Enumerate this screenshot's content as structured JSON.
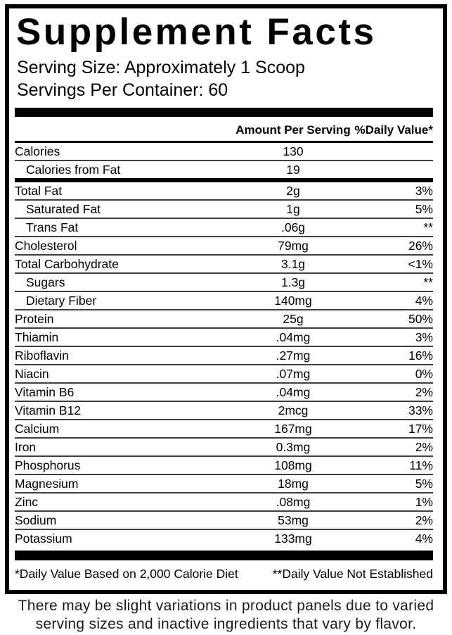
{
  "label": {
    "title": "Supplement Facts",
    "serving_size": "Serving Size: Approximately 1 Scoop",
    "servings_per_container": "Servings Per Container: 60",
    "columns": {
      "amount": "Amount Per Serving",
      "daily_value": "%Daily Value*"
    },
    "rows": [
      {
        "name": "Calories",
        "amount": "130",
        "dv": "",
        "indent": false,
        "sep": "thin"
      },
      {
        "name": "Calories from Fat",
        "amount": "19",
        "dv": "",
        "indent": true,
        "sep": "mid"
      },
      {
        "name": "Total Fat",
        "amount": "2g",
        "dv": "3%",
        "indent": false,
        "sep": "thin"
      },
      {
        "name": "Saturated Fat",
        "amount": "1g",
        "dv": "5%",
        "indent": true,
        "sep": "thin"
      },
      {
        "name": "Trans Fat",
        "amount": ".06g",
        "dv": "**",
        "indent": true,
        "sep": "thin"
      },
      {
        "name": "Cholesterol",
        "amount": "79mg",
        "dv": "26%",
        "indent": false,
        "sep": "thin"
      },
      {
        "name": "Total Carbohydrate",
        "amount": "3.1g",
        "dv": "<1%",
        "indent": false,
        "sep": "thin"
      },
      {
        "name": "Sugars",
        "amount": "1.3g",
        "dv": "**",
        "indent": true,
        "sep": "thin"
      },
      {
        "name": "Dietary Fiber",
        "amount": "140mg",
        "dv": "4%",
        "indent": true,
        "sep": "thin"
      },
      {
        "name": "Protein",
        "amount": "25g",
        "dv": "50%",
        "indent": false,
        "sep": "thin"
      },
      {
        "name": "Thiamin",
        "amount": ".04mg",
        "dv": "3%",
        "indent": false,
        "sep": "thin"
      },
      {
        "name": "Riboflavin",
        "amount": ".27mg",
        "dv": "16%",
        "indent": false,
        "sep": "thin"
      },
      {
        "name": "Niacin",
        "amount": ".07mg",
        "dv": "0%",
        "indent": false,
        "sep": "thin"
      },
      {
        "name": "Vitamin B6",
        "amount": ".04mg",
        "dv": "2%",
        "indent": false,
        "sep": "thin"
      },
      {
        "name": "Vitamin B12",
        "amount": "2mcg",
        "dv": "33%",
        "indent": false,
        "sep": "thin"
      },
      {
        "name": "Calcium",
        "amount": "167mg",
        "dv": "17%",
        "indent": false,
        "sep": "thin"
      },
      {
        "name": "Iron",
        "amount": "0.3mg",
        "dv": "2%",
        "indent": false,
        "sep": "thin"
      },
      {
        "name": "Phosphorus",
        "amount": "108mg",
        "dv": "11%",
        "indent": false,
        "sep": "thin"
      },
      {
        "name": "Magnesium",
        "amount": "18mg",
        "dv": "5%",
        "indent": false,
        "sep": "thin"
      },
      {
        "name": "Zinc",
        "amount": ".08mg",
        "dv": "1%",
        "indent": false,
        "sep": "thin"
      },
      {
        "name": "Sodium",
        "amount": "53mg",
        "dv": "2%",
        "indent": false,
        "sep": "thin"
      },
      {
        "name": "Potassium",
        "amount": "133mg",
        "dv": "4%",
        "indent": false,
        "sep": "none"
      }
    ],
    "footnotes": {
      "left": "*Daily Value Based on 2,000 Calorie Diet",
      "right": "**Daily Value Not Established"
    }
  },
  "disclaimer": {
    "line1": "There may be slight variations in product panels due to varied",
    "line2": "serving sizes and inactive ingredients that vary by flavor."
  },
  "colors": {
    "text": "#000000",
    "separator": "#414141",
    "background": "#ffffff"
  }
}
